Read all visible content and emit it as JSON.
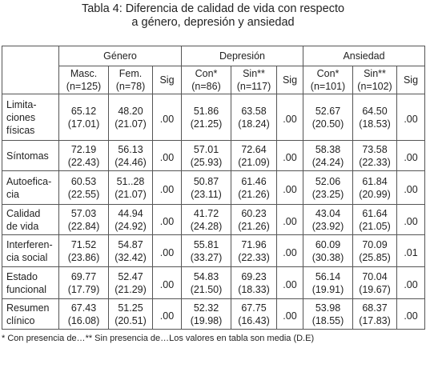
{
  "title": [
    "Tabla 4: Diferencia de calidad de vida con respecto",
    "a género, depresión y ansiedad"
  ],
  "table": {
    "groups": [
      "Género",
      "Depresión",
      "Ansiedad"
    ],
    "subheaders": [
      [
        "Masc.",
        "(n=125)"
      ],
      [
        "Fem.",
        "(n=78)"
      ],
      [
        "Sig"
      ],
      [
        "Con*",
        "(n=86)"
      ],
      [
        "Sin**",
        "(n=117)"
      ],
      [
        "Sig"
      ],
      [
        "Con*",
        "(n=101)"
      ],
      [
        "Sin**",
        "(n=102)"
      ],
      [
        "Sig"
      ]
    ],
    "rows": [
      {
        "label": [
          "Limita-",
          "ciones",
          "físicas"
        ],
        "cells": [
          [
            "65.12",
            "(17.01)"
          ],
          [
            "48.20",
            "(21.07)"
          ],
          [
            ".00"
          ],
          [
            "51.86",
            "(21.25)"
          ],
          [
            "63.58",
            "(18.24)"
          ],
          [
            ".00"
          ],
          [
            "52.67",
            "(20.50)"
          ],
          [
            "64.50",
            "(18.53)"
          ],
          [
            ".00"
          ]
        ]
      },
      {
        "label": [
          "Síntomas"
        ],
        "cells": [
          [
            "72.19",
            "(22.43)"
          ],
          [
            "56.13",
            "(24.46)"
          ],
          [
            ".00"
          ],
          [
            "57.01",
            "(25.93)"
          ],
          [
            "72.64",
            "(21.09)"
          ],
          [
            ".00"
          ],
          [
            "58.38",
            "(24.24)"
          ],
          [
            "73.58",
            "(22.33)"
          ],
          [
            ".00"
          ]
        ]
      },
      {
        "label": [
          "Autoefica-",
          "cia"
        ],
        "cells": [
          [
            "60.53",
            "(22.55)"
          ],
          [
            "51..28",
            "(21.07)"
          ],
          [
            ".00"
          ],
          [
            "50.87",
            "(23.11)"
          ],
          [
            "61.46",
            "(21.26)"
          ],
          [
            ".00"
          ],
          [
            "52.06",
            "(23.25)"
          ],
          [
            "61.84",
            "(20.99)"
          ],
          [
            ".00"
          ]
        ]
      },
      {
        "label": [
          "Calidad",
          "de vida"
        ],
        "cells": [
          [
            "57.03",
            "(22.84)"
          ],
          [
            "44.94",
            "(24.92)"
          ],
          [
            ".00"
          ],
          [
            "41.72",
            "(24.28)"
          ],
          [
            "60.23",
            "(21.26)"
          ],
          [
            ".00"
          ],
          [
            "43.04",
            "(23.92)"
          ],
          [
            "61.64",
            "(21.05)"
          ],
          [
            ".00"
          ]
        ]
      },
      {
        "label": [
          "Interferen-",
          "cia social"
        ],
        "cells": [
          [
            "71.52",
            "(23.86)"
          ],
          [
            "54.87",
            "(32.42)"
          ],
          [
            ".00"
          ],
          [
            "55.81",
            "(33.27)"
          ],
          [
            "71.96",
            "(22.33)"
          ],
          [
            ".00"
          ],
          [
            "60.09",
            "(30.38)"
          ],
          [
            "70.09",
            "(25.85)"
          ],
          [
            ".01"
          ]
        ]
      },
      {
        "label": [
          "Estado",
          "funcional"
        ],
        "cells": [
          [
            "69.77",
            "(17.79)"
          ],
          [
            "52.47",
            "(21.29)"
          ],
          [
            ".00"
          ],
          [
            "54.83",
            "(21.50)"
          ],
          [
            "69.23",
            "(18.33)"
          ],
          [
            ".00"
          ],
          [
            "56.14",
            "(19.91)"
          ],
          [
            "70.04",
            "(19.67)"
          ],
          [
            ".00"
          ]
        ]
      },
      {
        "label": [
          "Resumen",
          "clínico"
        ],
        "cells": [
          [
            "67.43",
            "(16.08)"
          ],
          [
            "51.25",
            "(20.51)"
          ],
          [
            ".00"
          ],
          [
            "52.32",
            "(19.98)"
          ],
          [
            "67.75",
            "(16.43)"
          ],
          [
            ".00"
          ],
          [
            "53.98",
            "(18.55)"
          ],
          [
            "68.37",
            "(17.83)"
          ],
          [
            ".00"
          ]
        ]
      }
    ]
  },
  "footnotes": [
    "* Con presencia de…",
    "** Sin presencia de…",
    "Los valores en tabla son media (D.E)"
  ]
}
